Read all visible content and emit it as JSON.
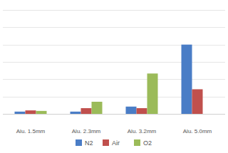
{
  "chart_data": {
    "type": "bar",
    "categories": [
      "Alu. 1.5mm",
      "Alu. 2.3mm",
      "Alu. 3.2mm",
      "Alu. 5.0mm"
    ],
    "series": [
      {
        "name": "N2",
        "color": "#4a7dc6",
        "values": [
          0.13,
          0.13,
          0.42,
          4.0
        ]
      },
      {
        "name": "Air",
        "color": "#c0504d",
        "values": [
          0.2,
          0.33,
          0.33,
          1.42
        ]
      },
      {
        "name": "O2",
        "color": "#9bbb59",
        "values": [
          0.17,
          0.7,
          2.33,
          null
        ]
      }
    ],
    "ylim": [
      0,
      6
    ],
    "yticks": [
      0,
      1,
      2,
      3,
      4,
      5,
      6
    ],
    "grid": true,
    "legend": "bottom",
    "tick_labels": "x"
  }
}
